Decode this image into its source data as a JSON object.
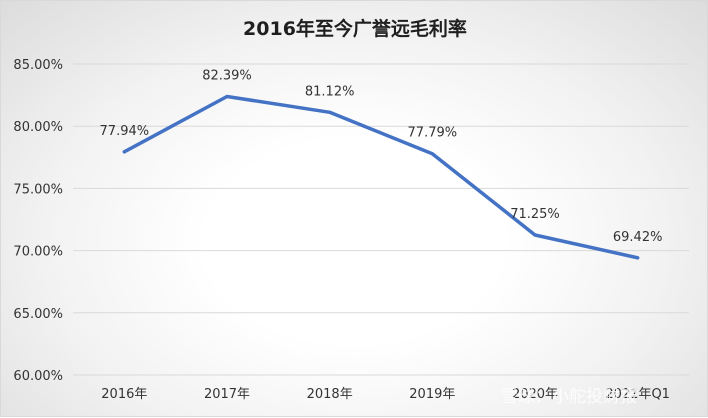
{
  "chart_data": {
    "type": "line",
    "title": "2016年至今广誉远毛利率",
    "categories": [
      "2016年",
      "2017年",
      "2018年",
      "2019年",
      "2020年",
      "2021年Q1"
    ],
    "series": [
      {
        "values": [
          77.94,
          82.39,
          81.12,
          77.79,
          71.25,
          69.42
        ]
      }
    ],
    "data_labels": [
      "77.94%",
      "82.39%",
      "81.12%",
      "77.79%",
      "71.25%",
      "69.42%"
    ],
    "yticks": [
      "60.00%",
      "65.00%",
      "70.00%",
      "75.00%",
      "80.00%",
      "85.00%"
    ],
    "ylim": [
      60,
      85
    ],
    "grid": true,
    "legend": "none",
    "line_color": "#4472C4",
    "watermark": "雪球：小舵投财报"
  }
}
